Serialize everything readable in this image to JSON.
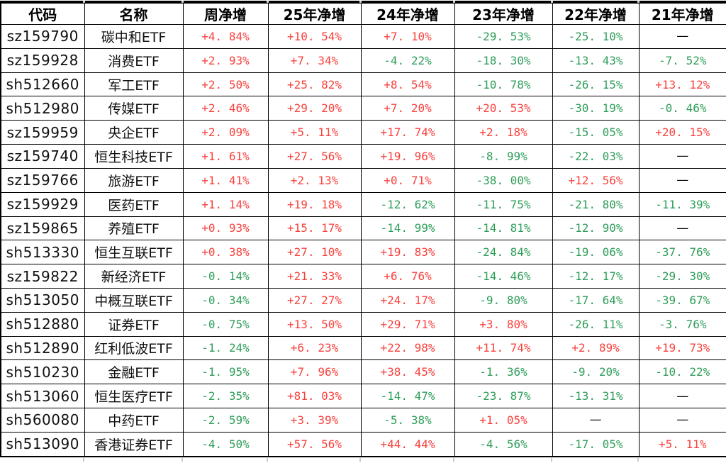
{
  "table": {
    "columns": [
      {
        "key": "code",
        "label": "代码"
      },
      {
        "key": "name",
        "label": "名称"
      },
      {
        "key": "week",
        "label": "周净增"
      },
      {
        "key": "y25",
        "label": "25年净增"
      },
      {
        "key": "y24",
        "label": "24年净增"
      },
      {
        "key": "y23",
        "label": "23年净增"
      },
      {
        "key": "y22",
        "label": "22年净增"
      },
      {
        "key": "y21",
        "label": "21年净增"
      }
    ],
    "rows": [
      {
        "code": "sz159790",
        "name": "碳中和ETF",
        "values": [
          "+4. 84%",
          "+10. 54%",
          "+7. 10%",
          "-29. 53%",
          "-25. 10%",
          "—"
        ]
      },
      {
        "code": "sz159928",
        "name": "消费ETF",
        "values": [
          "+2. 93%",
          "+7. 34%",
          "-4. 22%",
          "-18. 30%",
          "-13. 43%",
          "-7. 52%"
        ]
      },
      {
        "code": "sh512660",
        "name": "军工ETF",
        "values": [
          "+2. 50%",
          "+25. 82%",
          "+8. 54%",
          "-10. 78%",
          "-26. 15%",
          "+13. 12%"
        ]
      },
      {
        "code": "sh512980",
        "name": "传媒ETF",
        "values": [
          "+2. 46%",
          "+29. 20%",
          "+7. 20%",
          "+20. 53%",
          "-30. 19%",
          "-0. 46%"
        ]
      },
      {
        "code": "sz159959",
        "name": "央企ETF",
        "values": [
          "+2. 09%",
          "+5. 11%",
          "+17. 74%",
          "+2. 18%",
          "-15. 05%",
          "+20. 15%"
        ]
      },
      {
        "code": "sz159740",
        "name": "恒生科技ETF",
        "values": [
          "+1. 61%",
          "+27. 56%",
          "+19. 96%",
          "-8. 99%",
          "-22. 03%",
          "—"
        ]
      },
      {
        "code": "sz159766",
        "name": "旅游ETF",
        "values": [
          "+1. 41%",
          "+2. 13%",
          "+0. 71%",
          "-38. 00%",
          "+12. 56%",
          "—"
        ]
      },
      {
        "code": "sz159929",
        "name": "医药ETF",
        "values": [
          "+1. 14%",
          "+19. 18%",
          "-12. 62%",
          "-11. 75%",
          "-21. 80%",
          "-11. 39%"
        ]
      },
      {
        "code": "sz159865",
        "name": "养殖ETF",
        "values": [
          "+0. 93%",
          "+15. 17%",
          "-14. 99%",
          "-14. 81%",
          "-12. 90%",
          "—"
        ]
      },
      {
        "code": "sh513330",
        "name": "恒生互联ETF",
        "values": [
          "+0. 38%",
          "+27. 10%",
          "+19. 83%",
          "-24. 84%",
          "-19. 06%",
          "-37. 76%"
        ]
      },
      {
        "code": "sz159822",
        "name": "新经济ETF",
        "values": [
          "-0. 14%",
          "+21. 33%",
          "+6. 76%",
          "-14. 46%",
          "-12. 17%",
          "-29. 30%"
        ]
      },
      {
        "code": "sh513050",
        "name": "中概互联ETF",
        "values": [
          "-0. 34%",
          "+27. 27%",
          "+24. 17%",
          "-9. 80%",
          "-17. 64%",
          "-39. 67%"
        ]
      },
      {
        "code": "sh512880",
        "name": "证券ETF",
        "values": [
          "-0. 75%",
          "+13. 50%",
          "+29. 71%",
          "+3. 80%",
          "-26. 11%",
          "-3. 76%"
        ]
      },
      {
        "code": "sh512890",
        "name": "红利低波ETF",
        "values": [
          "-1. 24%",
          "+6. 23%",
          "+22. 98%",
          "+11. 74%",
          "+2. 89%",
          "+19. 73%"
        ]
      },
      {
        "code": "sh510230",
        "name": "金融ETF",
        "values": [
          "-1. 95%",
          "+7. 96%",
          "+38. 45%",
          "-1. 36%",
          "-9. 20%",
          "-10. 22%"
        ]
      },
      {
        "code": "sh513060",
        "name": "恒生医疗ETF",
        "values": [
          "-2. 35%",
          "+81. 03%",
          "-14. 47%",
          "-23. 87%",
          "-13. 31%",
          "—"
        ]
      },
      {
        "code": "sh560080",
        "name": "中药ETF",
        "values": [
          "-2. 59%",
          "+3. 39%",
          "-5. 38%",
          "+1. 05%",
          "—",
          "—"
        ]
      },
      {
        "code": "sh513090",
        "name": "香港证券ETF",
        "values": [
          "-4. 50%",
          "+57. 56%",
          "+44. 44%",
          "-4. 56%",
          "-17. 05%",
          "+5. 11%"
        ]
      }
    ]
  },
  "colors": {
    "positive": "#f8423e",
    "negative": "#2f9e5a",
    "neutral": "#000000",
    "grid": "#000000",
    "tick": "#c9c9c9",
    "background": "#ffffff"
  }
}
